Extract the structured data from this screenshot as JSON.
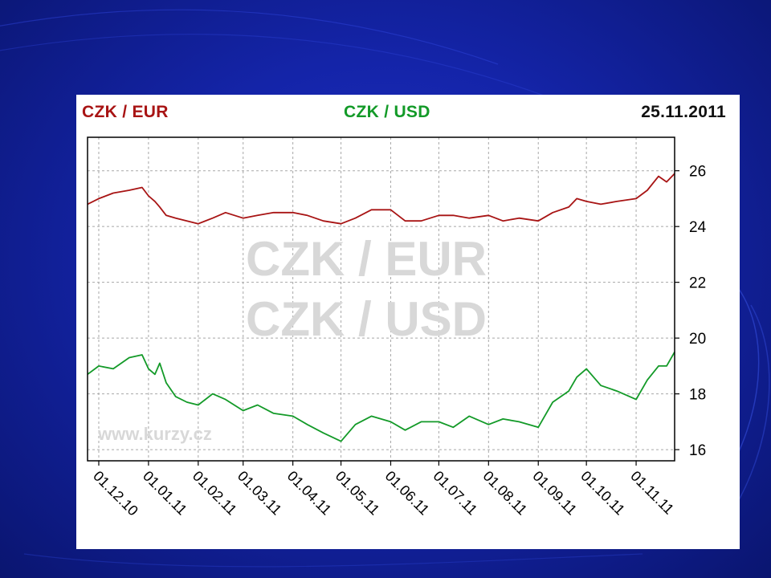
{
  "colors": {
    "background": "#1424a8",
    "eur": "#a81414",
    "usd": "#139a28",
    "watermark": "#d8d8d8"
  },
  "header": {
    "eur_label": "CZK / EUR",
    "usd_label": "CZK / USD",
    "date": "25.11.2011"
  },
  "watermark": {
    "line1": "CZK / EUR",
    "line2": "CZK / USD",
    "site": "www.kurzy.cz"
  },
  "chart_data": {
    "type": "line",
    "x_ticks": [
      "01.12.10",
      "01.01.11",
      "01.02.11",
      "01.03.11",
      "01.04.11",
      "01.05.11",
      "01.06.11",
      "01.07.11",
      "01.08.11",
      "01.09.11",
      "01.10.11",
      "01.11.11"
    ],
    "y_ticks": [
      "16",
      "18",
      "20",
      "22",
      "24",
      "26"
    ],
    "ylim": [
      15.6,
      27.2
    ],
    "xlim": [
      "2010-11-24",
      "2011-11-25"
    ],
    "grid": true,
    "series": [
      {
        "name": "CZK / EUR",
        "color": "#a81414",
        "x": [
          "2010-11-24",
          "2010-12-01",
          "2010-12-10",
          "2010-12-20",
          "2010-12-28",
          "2011-01-01",
          "2011-01-05",
          "2011-01-08",
          "2011-01-12",
          "2011-01-18",
          "2011-01-25",
          "2011-02-01",
          "2011-02-10",
          "2011-02-18",
          "2011-03-01",
          "2011-03-10",
          "2011-03-20",
          "2011-04-01",
          "2011-04-10",
          "2011-04-20",
          "2011-05-01",
          "2011-05-10",
          "2011-05-20",
          "2011-06-01",
          "2011-06-10",
          "2011-06-20",
          "2011-07-01",
          "2011-07-10",
          "2011-07-20",
          "2011-08-01",
          "2011-08-10",
          "2011-08-20",
          "2011-09-01",
          "2011-09-10",
          "2011-09-20",
          "2011-09-25",
          "2011-10-01",
          "2011-10-10",
          "2011-10-20",
          "2011-11-01",
          "2011-11-08",
          "2011-11-15",
          "2011-11-20",
          "2011-11-25"
        ],
        "y": [
          24.8,
          25.0,
          25.2,
          25.3,
          25.4,
          25.1,
          24.9,
          24.7,
          24.4,
          24.3,
          24.2,
          24.1,
          24.3,
          24.5,
          24.3,
          24.4,
          24.5,
          24.5,
          24.4,
          24.2,
          24.1,
          24.3,
          24.6,
          24.6,
          24.2,
          24.2,
          24.4,
          24.4,
          24.3,
          24.4,
          24.2,
          24.3,
          24.2,
          24.5,
          24.7,
          25.0,
          24.9,
          24.8,
          24.9,
          25.0,
          25.3,
          25.8,
          25.6,
          25.9
        ]
      },
      {
        "name": "CZK / USD",
        "color": "#139a28",
        "x": [
          "2010-11-24",
          "2010-12-01",
          "2010-12-10",
          "2010-12-20",
          "2010-12-28",
          "2011-01-01",
          "2011-01-05",
          "2011-01-08",
          "2011-01-12",
          "2011-01-18",
          "2011-01-25",
          "2011-02-01",
          "2011-02-10",
          "2011-02-18",
          "2011-03-01",
          "2011-03-10",
          "2011-03-20",
          "2011-04-01",
          "2011-04-10",
          "2011-04-20",
          "2011-05-01",
          "2011-05-10",
          "2011-05-20",
          "2011-06-01",
          "2011-06-10",
          "2011-06-20",
          "2011-07-01",
          "2011-07-10",
          "2011-07-20",
          "2011-08-01",
          "2011-08-10",
          "2011-08-20",
          "2011-09-01",
          "2011-09-10",
          "2011-09-20",
          "2011-09-25",
          "2011-10-01",
          "2011-10-10",
          "2011-10-20",
          "2011-11-01",
          "2011-11-08",
          "2011-11-15",
          "2011-11-20",
          "2011-11-25"
        ],
        "y": [
          18.7,
          19.0,
          18.9,
          19.3,
          19.4,
          18.9,
          18.7,
          19.1,
          18.4,
          17.9,
          17.7,
          17.6,
          18.0,
          17.8,
          17.4,
          17.6,
          17.3,
          17.2,
          16.9,
          16.6,
          16.3,
          16.9,
          17.2,
          17.0,
          16.7,
          17.0,
          17.0,
          16.8,
          17.2,
          16.9,
          17.1,
          17.0,
          16.8,
          17.7,
          18.1,
          18.6,
          18.9,
          18.3,
          18.1,
          17.8,
          18.5,
          19.0,
          19.0,
          19.5
        ]
      }
    ]
  }
}
